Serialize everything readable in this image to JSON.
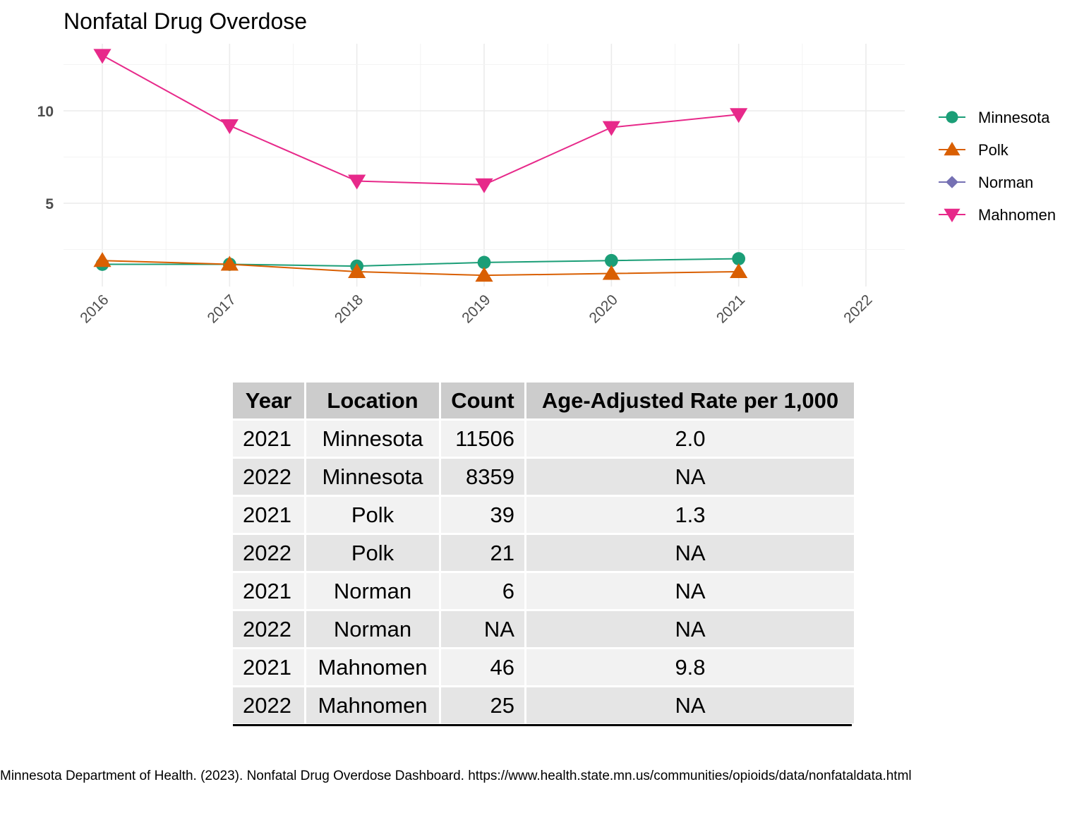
{
  "chart_data": {
    "type": "line",
    "title": "Nonfatal Drug Overdose",
    "xlabel": "",
    "ylabel": "",
    "x_ticks": [
      "2016",
      "2017",
      "2018",
      "2019",
      "2020",
      "2021",
      "2022"
    ],
    "y_ticks": [
      5,
      10
    ],
    "xlim": [
      2015.7,
      2022.3
    ],
    "ylim": [
      0.6,
      13.5
    ],
    "grid": true,
    "legend_position": "right",
    "series": [
      {
        "name": "Minnesota",
        "color": "#1b9e77",
        "marker": "circle",
        "x": [
          2016,
          2017,
          2018,
          2019,
          2020,
          2021
        ],
        "y": [
          1.7,
          1.7,
          1.6,
          1.8,
          1.9,
          2.0
        ]
      },
      {
        "name": "Polk",
        "color": "#d95f02",
        "marker": "triangle-up",
        "x": [
          2016,
          2017,
          2018,
          2019,
          2020,
          2021
        ],
        "y": [
          1.9,
          1.7,
          1.3,
          1.1,
          1.2,
          1.3
        ]
      },
      {
        "name": "Norman",
        "color": "#7570b3",
        "marker": "diamond",
        "x": [],
        "y": []
      },
      {
        "name": "Mahnomen",
        "color": "#e7298a",
        "marker": "triangle-down",
        "x": [
          2016,
          2017,
          2018,
          2019,
          2020,
          2021
        ],
        "y": [
          13.0,
          9.2,
          6.2,
          6.0,
          9.1,
          9.8
        ]
      }
    ]
  },
  "table": {
    "headers": [
      "Year",
      "Location",
      "Count",
      "Age-Adjusted Rate per 1,000"
    ],
    "rows": [
      [
        "2021",
        "Minnesota",
        "11506",
        "2.0"
      ],
      [
        "2022",
        "Minnesota",
        "8359",
        "NA"
      ],
      [
        "2021",
        "Polk",
        "39",
        "1.3"
      ],
      [
        "2022",
        "Polk",
        "21",
        "NA"
      ],
      [
        "2021",
        "Norman",
        "6",
        "NA"
      ],
      [
        "2022",
        "Norman",
        "NA",
        "NA"
      ],
      [
        "2021",
        "Mahnomen",
        "46",
        "9.8"
      ],
      [
        "2022",
        "Mahnomen",
        "25",
        "NA"
      ]
    ]
  },
  "source_text": "Minnesota Department of Health. (2023). Nonfatal Drug Overdose Dashboard. https://www.health.state.mn.us/communities/opioids/data/nonfataldata.html"
}
